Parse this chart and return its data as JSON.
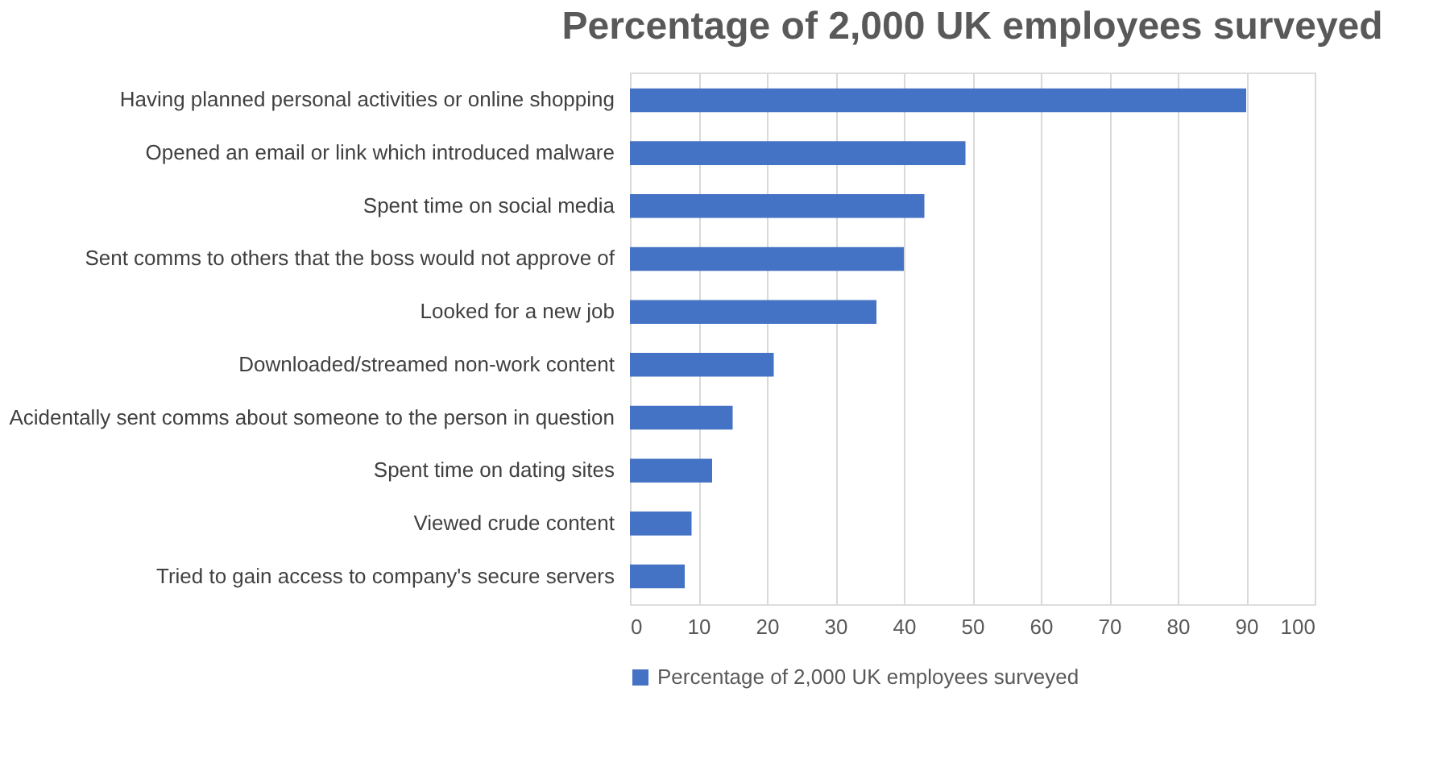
{
  "chart_data": {
    "type": "bar",
    "orientation": "horizontal",
    "title": "Percentage of 2,000 UK employees surveyed",
    "categories": [
      "Having planned personal activities or online shopping",
      "Opened an email or link which introduced malware",
      "Spent time on social media",
      "Sent comms to others that the boss would not approve of",
      "Looked for a new job",
      "Downloaded/streamed non-work content",
      "Acidentally sent comms about someone to the person in question",
      "Spent time on dating sites",
      "Viewed crude content",
      "Tried to gain access to company's secure servers"
    ],
    "series": [
      {
        "name": "Percentage of 2,000 UK employees surveyed",
        "color": "#4472c4",
        "values": [
          90,
          49,
          43,
          40,
          36,
          21,
          15,
          12,
          9,
          8
        ]
      }
    ],
    "xlim": [
      0,
      100
    ],
    "xticks": [
      0,
      10,
      20,
      30,
      40,
      50,
      60,
      70,
      80,
      90,
      100
    ],
    "grid": "x",
    "legend": "bottom"
  }
}
